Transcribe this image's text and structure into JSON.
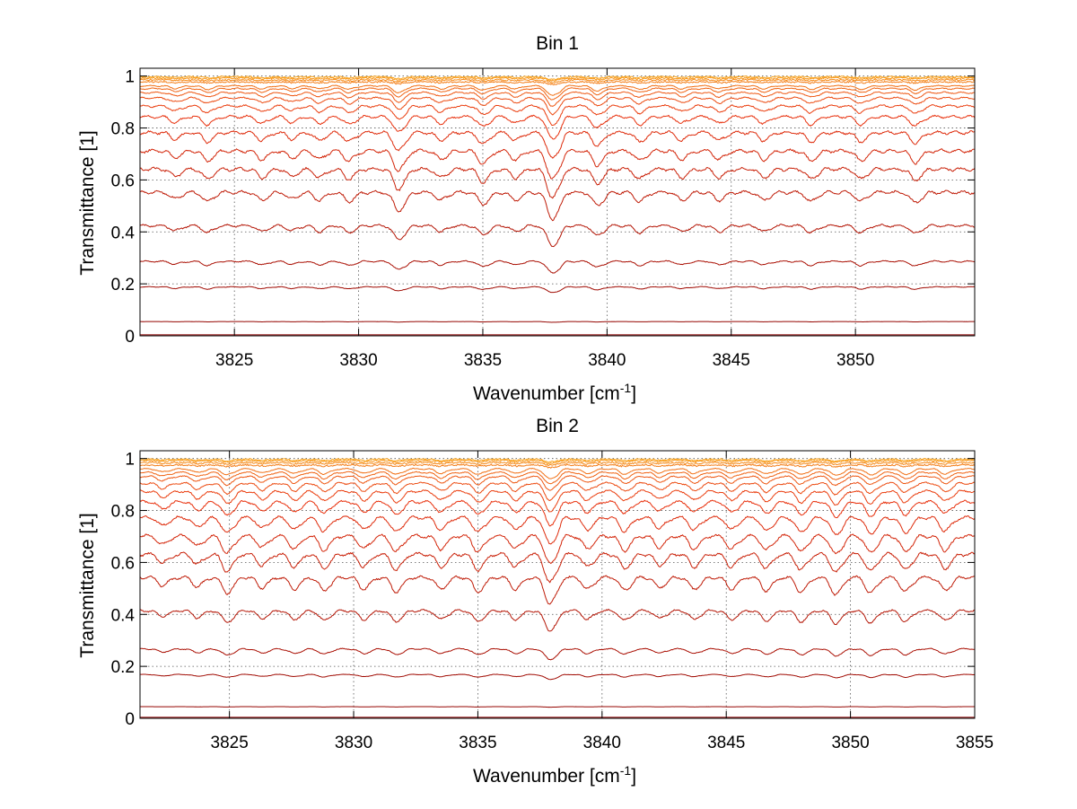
{
  "chart_data": [
    {
      "type": "line",
      "title": "Bin 1",
      "xlabel": "Wavenumber [cm",
      "xlabel_sup": "-1",
      "xlabel_end": "]",
      "ylabel": "Transmittance [1]",
      "xlim": [
        3821.2,
        3854.8
      ],
      "ylim": [
        0,
        1.03
      ],
      "xticks": [
        3825,
        3830,
        3835,
        3840,
        3845,
        3850
      ],
      "xtick_labels": [
        "3825",
        "3830",
        "3835",
        "3840",
        "3845",
        "3850"
      ],
      "yticks": [
        0,
        0.2,
        0.4,
        0.6,
        0.8,
        1
      ],
      "ytick_labels": [
        "0",
        "0.2",
        "0.4",
        "0.6",
        "0.8",
        "1"
      ],
      "grid": true,
      "series_colors": [
        "#8b0000",
        "#e8300c",
        "#f9a41d"
      ],
      "series_levels": [
        0.004,
        0.055,
        0.19,
        0.29,
        0.43,
        0.56,
        0.65,
        0.72,
        0.79,
        0.85,
        0.89,
        0.92,
        0.94,
        0.955,
        0.965,
        0.975,
        0.983,
        0.99,
        0.995
      ],
      "absorption_lines": [
        {
          "x": 3822.6,
          "depth": 0.25
        },
        {
          "x": 3823.9,
          "depth": 0.35
        },
        {
          "x": 3826.1,
          "depth": 0.3
        },
        {
          "x": 3827.3,
          "depth": 0.25
        },
        {
          "x": 3828.4,
          "depth": 0.3
        },
        {
          "x": 3829.6,
          "depth": 0.35
        },
        {
          "x": 3831.6,
          "depth": 0.7
        },
        {
          "x": 3833.3,
          "depth": 0.3
        },
        {
          "x": 3835.0,
          "depth": 0.45
        },
        {
          "x": 3836.3,
          "depth": 0.3
        },
        {
          "x": 3837.8,
          "depth": 1.0
        },
        {
          "x": 3839.6,
          "depth": 0.5
        },
        {
          "x": 3841.3,
          "depth": 0.35
        },
        {
          "x": 3843.0,
          "depth": 0.3
        },
        {
          "x": 3844.5,
          "depth": 0.3
        },
        {
          "x": 3846.3,
          "depth": 0.3
        },
        {
          "x": 3848.2,
          "depth": 0.35
        },
        {
          "x": 3850.2,
          "depth": 0.35
        },
        {
          "x": 3852.4,
          "depth": 0.4
        }
      ]
    },
    {
      "type": "line",
      "title": "Bin 2",
      "xlabel": "Wavenumber [cm",
      "xlabel_sup": "-1",
      "xlabel_end": "]",
      "ylabel": "Transmittance [1]",
      "xlim": [
        3821.4,
        3855
      ],
      "ylim": [
        0,
        1.03
      ],
      "xticks": [
        3825,
        3830,
        3835,
        3840,
        3845,
        3850,
        3855
      ],
      "xtick_labels": [
        "3825",
        "3830",
        "3835",
        "3840",
        "3845",
        "3850",
        "3855"
      ],
      "yticks": [
        0,
        0.2,
        0.4,
        0.6,
        0.8,
        1
      ],
      "ytick_labels": [
        "0",
        "0.2",
        "0.4",
        "0.6",
        "0.8",
        "1"
      ],
      "grid": true,
      "series_colors": [
        "#8b0000",
        "#e8300c",
        "#f9a41d"
      ],
      "series_levels": [
        0.004,
        0.045,
        0.17,
        0.27,
        0.42,
        0.55,
        0.64,
        0.71,
        0.78,
        0.84,
        0.88,
        0.91,
        0.935,
        0.95,
        0.963,
        0.973,
        0.982,
        0.99,
        0.995
      ],
      "absorption_lines": [
        {
          "x": 3822.3,
          "depth": 0.3
        },
        {
          "x": 3823.7,
          "depth": 0.35
        },
        {
          "x": 3824.9,
          "depth": 0.6
        },
        {
          "x": 3826.3,
          "depth": 0.4
        },
        {
          "x": 3827.6,
          "depth": 0.45
        },
        {
          "x": 3828.8,
          "depth": 0.5
        },
        {
          "x": 3830.4,
          "depth": 0.45
        },
        {
          "x": 3831.7,
          "depth": 0.55
        },
        {
          "x": 3833.5,
          "depth": 0.45
        },
        {
          "x": 3835.0,
          "depth": 0.55
        },
        {
          "x": 3836.5,
          "depth": 0.45
        },
        {
          "x": 3837.9,
          "depth": 1.0
        },
        {
          "x": 3839.4,
          "depth": 0.45
        },
        {
          "x": 3840.9,
          "depth": 0.5
        },
        {
          "x": 3842.3,
          "depth": 0.4
        },
        {
          "x": 3843.7,
          "depth": 0.45
        },
        {
          "x": 3845.2,
          "depth": 0.45
        },
        {
          "x": 3846.6,
          "depth": 0.5
        },
        {
          "x": 3848.0,
          "depth": 0.55
        },
        {
          "x": 3849.4,
          "depth": 0.65
        },
        {
          "x": 3850.8,
          "depth": 0.6
        },
        {
          "x": 3852.2,
          "depth": 0.55
        },
        {
          "x": 3853.8,
          "depth": 0.5
        }
      ]
    }
  ]
}
